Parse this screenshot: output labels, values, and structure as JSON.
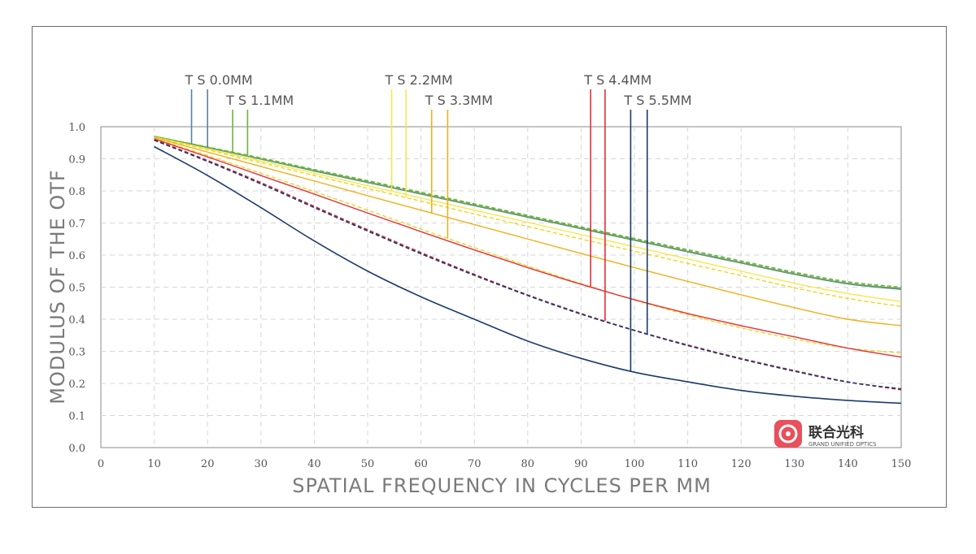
{
  "chart_data": {
    "type": "line",
    "xlabel": "SPATIAL FREQUENCY IN CYCLES PER MM",
    "ylabel": "MODULUS OF THE OTF",
    "xlim": [
      0,
      150
    ],
    "ylim": [
      0,
      1.0
    ],
    "x_ticks": [
      "0",
      "10",
      "20",
      "30",
      "40",
      "50",
      "60",
      "70",
      "80",
      "90",
      "100",
      "110",
      "120",
      "130",
      "140",
      "150"
    ],
    "y_ticks": [
      "0.0",
      "0.1",
      "0.2",
      "0.3",
      "0.4",
      "0.5",
      "0.6",
      "0.7",
      "0.8",
      "0.9",
      "1.0"
    ],
    "grid": true,
    "series": [
      {
        "name": "T S 0.0MM",
        "color": "#5a7fa5",
        "dash": false,
        "x": [
          10,
          20,
          30,
          40,
          50,
          60,
          70,
          80,
          90,
          100,
          110,
          120,
          130,
          140,
          150
        ],
        "y": [
          0.97,
          0.935,
          0.899,
          0.862,
          0.826,
          0.79,
          0.754,
          0.718,
          0.682,
          0.646,
          0.61,
          0.575,
          0.54,
          0.51,
          0.493
        ]
      },
      {
        "name": "T S 0.0MM",
        "color": "#5a7fa5",
        "dash": true,
        "x": [
          10,
          20,
          30,
          40,
          50,
          60,
          70,
          80,
          90,
          100,
          110,
          120,
          130,
          140,
          150
        ],
        "y": [
          0.97,
          0.936,
          0.901,
          0.864,
          0.829,
          0.793,
          0.757,
          0.721,
          0.685,
          0.649,
          0.613,
          0.578,
          0.543,
          0.513,
          0.496
        ]
      },
      {
        "name": "T S 1.1MM",
        "color": "#6db33f",
        "dash": false,
        "x": [
          10,
          20,
          30,
          40,
          50,
          60,
          70,
          80,
          90,
          100,
          110,
          120,
          130,
          140,
          150
        ],
        "y": [
          0.97,
          0.936,
          0.9,
          0.864,
          0.828,
          0.792,
          0.756,
          0.72,
          0.684,
          0.648,
          0.612,
          0.577,
          0.542,
          0.512,
          0.496
        ]
      },
      {
        "name": "T S 1.1MM",
        "color": "#6db33f",
        "dash": true,
        "x": [
          10,
          20,
          30,
          40,
          50,
          60,
          70,
          80,
          90,
          100,
          110,
          120,
          130,
          140,
          150
        ],
        "y": [
          0.97,
          0.937,
          0.903,
          0.867,
          0.832,
          0.796,
          0.76,
          0.724,
          0.688,
          0.652,
          0.617,
          0.582,
          0.547,
          0.517,
          0.5
        ]
      },
      {
        "name": "T S 2.2MM",
        "color": "#f5e84a",
        "dash": false,
        "x": [
          10,
          20,
          30,
          40,
          50,
          60,
          70,
          80,
          90,
          100,
          110,
          120,
          130,
          140,
          150
        ],
        "y": [
          0.968,
          0.931,
          0.893,
          0.855,
          0.816,
          0.778,
          0.74,
          0.702,
          0.664,
          0.626,
          0.588,
          0.55,
          0.512,
          0.48,
          0.455
        ]
      },
      {
        "name": "T S 2.2MM",
        "color": "#f2d41c",
        "dash": true,
        "x": [
          10,
          20,
          30,
          40,
          50,
          60,
          70,
          80,
          90,
          100,
          110,
          120,
          130,
          140,
          150
        ],
        "y": [
          0.967,
          0.928,
          0.888,
          0.848,
          0.808,
          0.768,
          0.728,
          0.689,
          0.65,
          0.612,
          0.574,
          0.536,
          0.498,
          0.465,
          0.44
        ]
      },
      {
        "name": "T S 3.3MM",
        "color": "#f0b01a",
        "dash": false,
        "x": [
          10,
          20,
          30,
          40,
          50,
          60,
          70,
          80,
          90,
          100,
          110,
          120,
          130,
          140,
          150
        ],
        "y": [
          0.966,
          0.921,
          0.876,
          0.831,
          0.785,
          0.74,
          0.695,
          0.65,
          0.605,
          0.561,
          0.518,
          0.476,
          0.436,
          0.4,
          0.38
        ]
      },
      {
        "name": "T S 3.3MM",
        "color": "#f2d41c",
        "dash": true,
        "x": [
          10,
          20,
          30,
          40,
          50,
          60,
          70,
          80,
          90,
          100,
          110,
          120,
          130,
          140,
          150
        ],
        "y": [
          0.963,
          0.91,
          0.855,
          0.798,
          0.74,
          0.681,
          0.623,
          0.566,
          0.511,
          0.46,
          0.414,
          0.373,
          0.338,
          0.31,
          0.295
        ]
      },
      {
        "name": "T S 4.4MM",
        "color": "#e0303a",
        "dash": false,
        "x": [
          10,
          20,
          30,
          40,
          50,
          60,
          70,
          80,
          90,
          100,
          110,
          120,
          130,
          140,
          150
        ],
        "y": [
          0.962,
          0.906,
          0.848,
          0.79,
          0.731,
          0.673,
          0.616,
          0.561,
          0.509,
          0.461,
          0.418,
          0.38,
          0.345,
          0.31,
          0.282
        ]
      },
      {
        "name": "T S 4.4MM",
        "color": "#d4202c",
        "dash": true,
        "x": [
          10,
          20,
          30,
          40,
          50,
          60,
          70,
          80,
          90,
          100,
          110,
          120,
          130,
          140,
          150
        ],
        "y": [
          0.96,
          0.895,
          0.826,
          0.752,
          0.679,
          0.608,
          0.54,
          0.476,
          0.418,
          0.366,
          0.32,
          0.278,
          0.24,
          0.205,
          0.18
        ]
      },
      {
        "name": "T S 5.5MM",
        "color": "#1c3a6b",
        "dash": false,
        "x": [
          10,
          20,
          30,
          40,
          50,
          60,
          70,
          80,
          90,
          100,
          110,
          120,
          130,
          140,
          150
        ],
        "y": [
          0.938,
          0.848,
          0.748,
          0.644,
          0.55,
          0.47,
          0.4,
          0.332,
          0.278,
          0.235,
          0.205,
          0.178,
          0.16,
          0.147,
          0.138
        ]
      },
      {
        "name": "T S 5.5MM",
        "color": "#1c3a6b",
        "dash": true,
        "x": [
          10,
          20,
          30,
          40,
          50,
          60,
          70,
          80,
          90,
          100,
          110,
          120,
          130,
          140,
          150
        ],
        "y": [
          0.958,
          0.892,
          0.822,
          0.748,
          0.675,
          0.604,
          0.537,
          0.474,
          0.416,
          0.365,
          0.318,
          0.276,
          0.238,
          0.204,
          0.183
        ]
      }
    ],
    "markers": [
      {
        "label": "T S 0.0MM",
        "color": "#5a7fa5",
        "x": [
          17.0,
          20.0
        ],
        "row": 1
      },
      {
        "label": "T S 1.1MM",
        "color": "#6db33f",
        "x": [
          24.7,
          27.5
        ],
        "row": 2
      },
      {
        "label": "T S 2.2MM",
        "color": "#f5e84a",
        "x": [
          54.5,
          57.2
        ],
        "row": 1
      },
      {
        "label": "T S 3.3MM",
        "color": "#f0b01a",
        "x": [
          62.0,
          65.0
        ],
        "row": 2
      },
      {
        "label": "T S 4.4MM",
        "color": "#e0303a",
        "x": [
          91.8,
          94.5
        ],
        "row": 1
      },
      {
        "label": "T S 5.5MM",
        "color": "#1c3a6b",
        "x": [
          99.3,
          102.4
        ],
        "row": 2
      }
    ]
  },
  "logo": {
    "chinese": "联合光科",
    "english": "GRAND UNIFIED OPTICS",
    "color": "#e8505b"
  }
}
